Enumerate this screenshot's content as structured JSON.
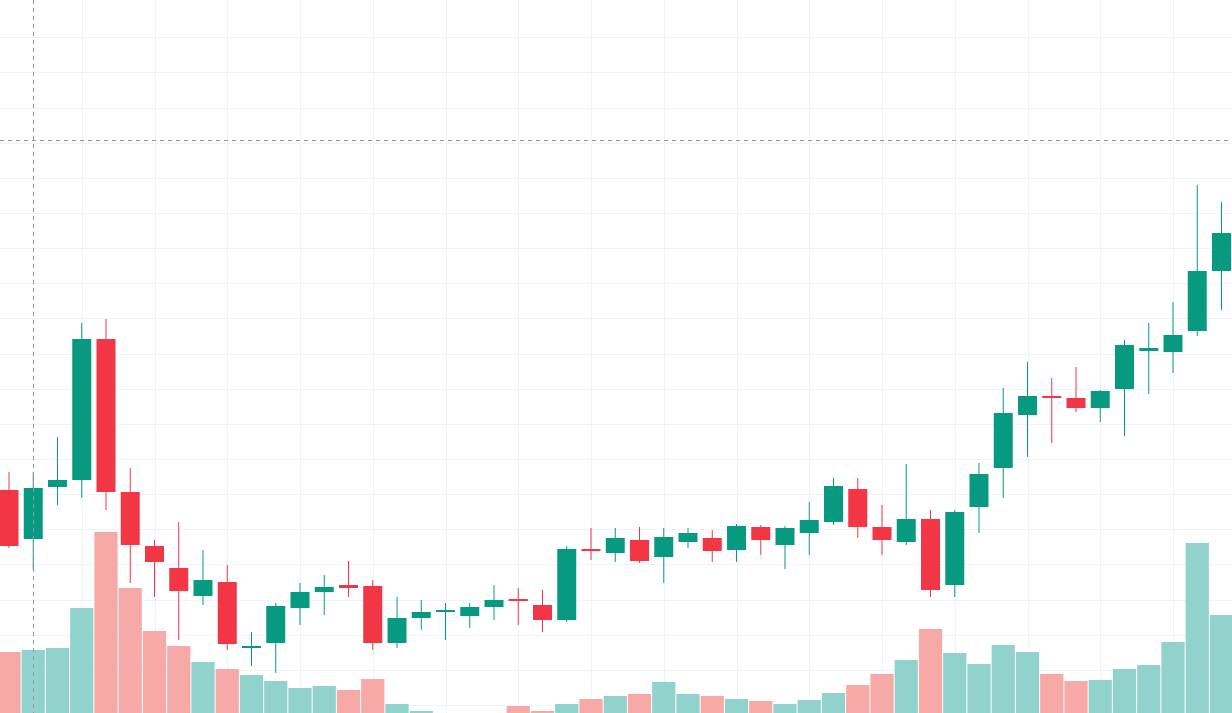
{
  "chart_data": {
    "type": "candlestick",
    "up_color": "#089981",
    "down_color": "#f23645",
    "volume_up_color": "#92d2cc",
    "volume_down_color": "#f7a9a7",
    "ylim": [
      0,
      713
    ],
    "yticks": [
      8,
      43,
      78,
      113,
      149,
      184,
      219,
      254,
      289,
      324,
      359,
      395,
      430,
      465,
      500,
      535,
      570,
      605,
      641,
      676
    ],
    "grid": true,
    "open": [
      223,
      174,
      226,
      233,
      374,
      221,
      167,
      145,
      117,
      131,
      65,
      70,
      105,
      121,
      128,
      127,
      70,
      95,
      101,
      97,
      106,
      114,
      108,
      93,
      164,
      160,
      173,
      156,
      171,
      175,
      163,
      186,
      168,
      180,
      191,
      224,
      186,
      171,
      194,
      128,
      206,
      245,
      298,
      317,
      315,
      305,
      324,
      362,
      361,
      382,
      442
    ],
    "high": [
      241,
      241,
      276,
      390,
      394,
      245,
      173,
      191,
      163,
      148,
      81,
      110,
      130,
      138,
      152,
      133,
      116,
      113,
      110,
      110,
      128,
      125,
      123,
      167,
      185,
      185,
      186,
      185,
      185,
      183,
      189,
      188,
      187,
      211,
      235,
      235,
      208,
      249,
      203,
      203,
      250,
      325,
      351,
      335,
      346,
      323,
      373,
      390,
      411,
      528,
      511
    ],
    "low": [
      165,
      143,
      208,
      215,
      203,
      130,
      116,
      73,
      108,
      63,
      47,
      40,
      88,
      98,
      116,
      63,
      65,
      83,
      73,
      85,
      93,
      88,
      81,
      91,
      153,
      151,
      150,
      130,
      165,
      151,
      151,
      158,
      144,
      158,
      188,
      175,
      158,
      168,
      116,
      116,
      180,
      215,
      256,
      270,
      301,
      291,
      277,
      319,
      340,
      377,
      403
    ],
    "close": [
      167,
      225,
      233,
      374,
      221,
      168,
      151,
      122,
      133,
      69,
      67,
      107,
      121,
      126,
      125,
      70,
      95,
      101,
      103,
      106,
      113,
      112,
      93,
      164,
      162,
      175,
      152,
      176,
      180,
      162,
      187,
      173,
      185,
      193,
      227,
      186,
      173,
      194,
      123,
      201,
      239,
      300,
      317,
      315,
      305,
      322,
      368,
      365,
      378,
      442,
      480
    ],
    "volume": [
      61,
      63,
      65,
      105,
      181,
      125,
      82,
      67,
      51,
      44,
      38,
      32,
      25,
      27,
      23,
      34,
      9,
      2,
      0,
      0,
      0,
      7,
      2,
      9,
      14,
      17,
      19,
      31,
      19,
      17,
      14,
      12,
      9,
      13,
      20,
      28,
      39,
      53,
      84,
      60,
      49,
      68,
      61,
      39,
      32,
      33,
      44,
      48,
      71,
      170,
      98
    ]
  }
}
